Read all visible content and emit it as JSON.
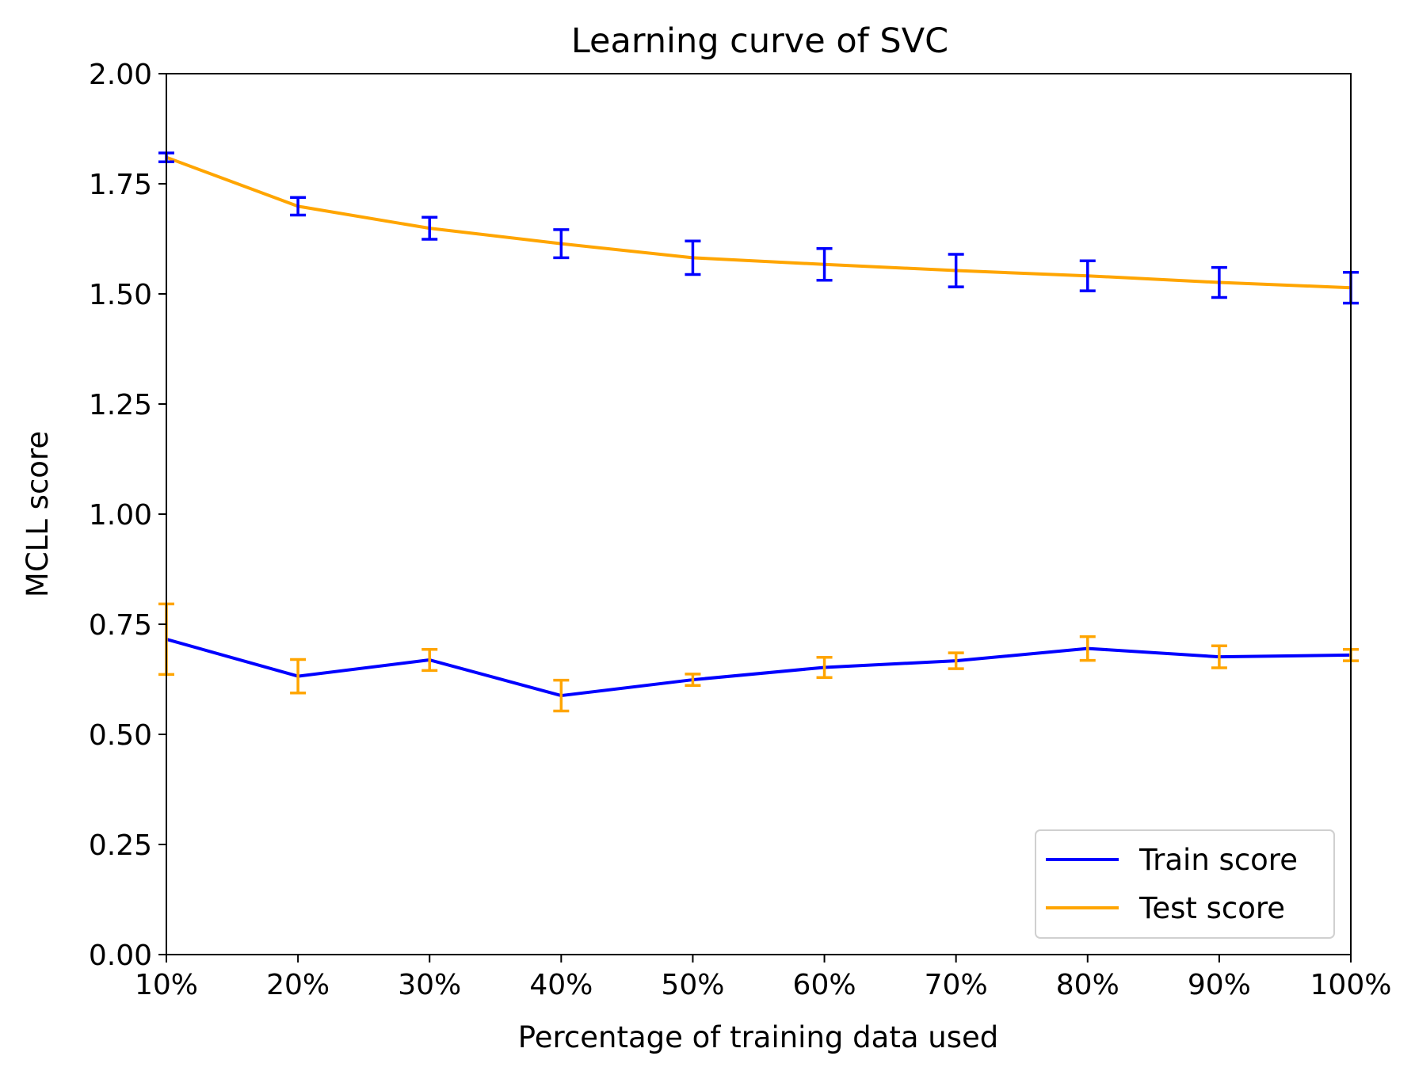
{
  "chart_data": {
    "type": "line",
    "title": "Learning curve of SVC",
    "xlabel": "Percentage of training data used",
    "ylabel": "MCLL score",
    "x": [
      "10%",
      "20%",
      "30%",
      "40%",
      "50%",
      "60%",
      "70%",
      "80%",
      "90%",
      "100%"
    ],
    "ylim": [
      0,
      2
    ],
    "yticks": [
      "0.00",
      "0.25",
      "0.50",
      "0.75",
      "1.00",
      "1.25",
      "1.50",
      "1.75",
      "2.00"
    ],
    "grid": false,
    "legend_position": "lower-right",
    "series": [
      {
        "name": "Train score",
        "color": "#0000ff",
        "values": [
          0.716,
          0.632,
          0.669,
          0.588,
          0.624,
          0.652,
          0.667,
          0.695,
          0.676,
          0.68
        ],
        "error_color": "#ffa500",
        "errors": [
          0.08,
          0.038,
          0.024,
          0.035,
          0.013,
          0.023,
          0.018,
          0.027,
          0.025,
          0.013
        ]
      },
      {
        "name": "Test score",
        "color": "#ffa500",
        "values": [
          1.81,
          1.699,
          1.649,
          1.614,
          1.582,
          1.567,
          1.553,
          1.541,
          1.526,
          1.514
        ],
        "error_color": "#0000ff",
        "errors": [
          0.01,
          0.02,
          0.025,
          0.032,
          0.038,
          0.036,
          0.037,
          0.034,
          0.034,
          0.035
        ]
      }
    ]
  }
}
